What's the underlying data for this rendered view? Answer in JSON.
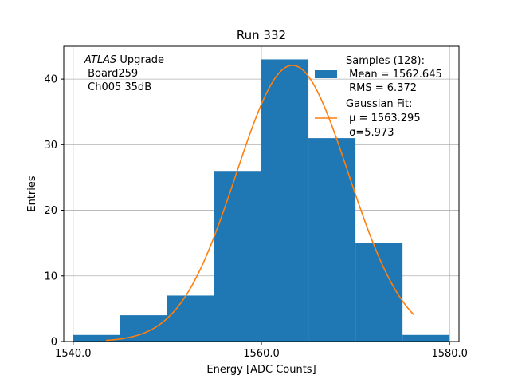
{
  "chart_data": {
    "type": "bar",
    "title": "Run 332",
    "xlabel": "Energy [ADC Counts]",
    "ylabel": "Entries",
    "xlim": [
      1539,
      1581
    ],
    "ylim": [
      0,
      45
    ],
    "grid": true,
    "bar_color": "#1f77b4",
    "fit_color": "#ff7f0e",
    "bins": [
      {
        "x0": 1540,
        "x1": 1545,
        "value": 1
      },
      {
        "x0": 1545,
        "x1": 1550,
        "value": 4
      },
      {
        "x0": 1550,
        "x1": 1555,
        "value": 7
      },
      {
        "x0": 1555,
        "x1": 1560,
        "value": 26
      },
      {
        "x0": 1560,
        "x1": 1565,
        "value": 43
      },
      {
        "x0": 1565,
        "x1": 1570,
        "value": 31
      },
      {
        "x0": 1570,
        "x1": 1575,
        "value": 15
      },
      {
        "x0": 1575,
        "x1": 1580,
        "value": 1
      }
    ],
    "x_ticks": [
      1540,
      1560,
      1580
    ],
    "x_tick_labels": [
      "1540.0",
      "1560.0",
      "1580.0"
    ],
    "y_ticks": [
      0,
      10,
      20,
      30,
      40
    ],
    "y_tick_labels": [
      "0",
      "10",
      "20",
      "30",
      "40"
    ],
    "fit": {
      "mu": 1563.295,
      "sigma": 5.973,
      "amplitude": 42.1,
      "x_range": [
        1543.5,
        1576.2
      ]
    },
    "annotation": {
      "italic": "ATLAS",
      "line1_rest": " Upgrade",
      "line2": " Board259",
      "line3": " Ch005 35dB"
    },
    "legend": {
      "placement": "top-right",
      "hist_lines": [
        "Samples (128):",
        " Mean = 1562.645",
        " RMS = 6.372"
      ],
      "fit_lines": [
        "Gaussian Fit:",
        " μ = 1563.295",
        " σ=5.973"
      ]
    }
  }
}
